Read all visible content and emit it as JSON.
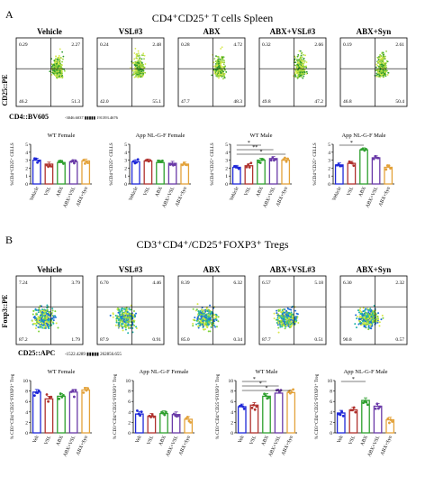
{
  "panels": [
    {
      "letter": "A",
      "title": "CD4⁺CD25⁺ T cells Spleen",
      "flow_y_label": "CD25::PE",
      "flow_x_label": "CD4::BV605",
      "flow_scale_text": "-3046.6037 ▮▮▮▮▮ 191393.4676",
      "flow_plots": [
        {
          "name": "Vehicle",
          "q": [
            "0.29",
            "2.27",
            "46.2",
            "51.3"
          ]
        },
        {
          "name": "VSL#3",
          "q": [
            "0.24",
            "2.48",
            "42.0",
            "55.1"
          ]
        },
        {
          "name": "ABX",
          "q": [
            "0.28",
            "4.72",
            "47.7",
            "48.3"
          ]
        },
        {
          "name": "ABX+VSL#3",
          "q": [
            "0.32",
            "2.66",
            "49.8",
            "47.2"
          ]
        },
        {
          "name": "ABX+Syn",
          "q": [
            "0.19",
            "2.61",
            "46.8",
            "50.4"
          ]
        }
      ]
    },
    {
      "letter": "B",
      "title": "CD3⁺CD4⁺/CD25⁺FOXP3⁺ Tregs",
      "flow_y_label": "Foxp3::PE",
      "flow_x_label": "CD25::APC",
      "flow_scale_text": "-1522.4289 ▮▮▮▮▮ 262856.655",
      "flow_plots": [
        {
          "name": "Vehicle",
          "q": [
            "7.24",
            "3.79",
            "87.2",
            "1.79"
          ]
        },
        {
          "name": "VSL#3",
          "q": [
            "6.70",
            "4.46",
            "87.9",
            "0.91"
          ]
        },
        {
          "name": "ABX",
          "q": [
            "8.39",
            "6.32",
            "85.0",
            "0.34"
          ]
        },
        {
          "name": "ABX+VSL#3",
          "q": [
            "6.57",
            "5.18",
            "87.7",
            "0.51"
          ]
        },
        {
          "name": "ABX+Syn",
          "q": [
            "6.30",
            "2.32",
            "90.8",
            "0.57"
          ]
        }
      ]
    }
  ],
  "chart_data": [
    {
      "type": "bar",
      "panel": "A",
      "title": "WT Female",
      "ylabel": "%CD4⁺CD25⁺ CELLS",
      "ylim": [
        0,
        5
      ],
      "yticks": [
        0,
        1,
        2,
        3,
        4,
        5
      ],
      "categories": [
        "Vehicle",
        "VSL",
        "ABX",
        "ABX+VSL",
        "ABX+Syn"
      ],
      "values": [
        3.0,
        2.5,
        2.7,
        2.8,
        2.9
      ],
      "colors": [
        "#1f28d8",
        "#b0322e",
        "#2fa02f",
        "#6a3aa8",
        "#e3a23a"
      ],
      "significance": []
    },
    {
      "type": "bar",
      "panel": "A",
      "title": "App NL-G-F Female",
      "ylabel": "%CD4⁺CD25⁺ CELLS",
      "ylim": [
        0,
        5
      ],
      "yticks": [
        0,
        1,
        2,
        3,
        4,
        5
      ],
      "categories": [
        "Vehicle",
        "VSL",
        "ABX",
        "ABX+VSL",
        "ABX+Syn"
      ],
      "values": [
        2.8,
        2.9,
        2.7,
        2.6,
        2.5
      ],
      "colors": [
        "#1f28d8",
        "#b0322e",
        "#2fa02f",
        "#6a3aa8",
        "#e3a23a"
      ],
      "significance": []
    },
    {
      "type": "bar",
      "panel": "A",
      "title": "WT Male",
      "ylabel": "%CD4⁺CD25⁺ CELLS",
      "ylim": [
        0,
        5
      ],
      "yticks": [
        0,
        1,
        2,
        3,
        4,
        5
      ],
      "categories": [
        "Vehicle",
        "VSL",
        "ABX",
        "ABX+VSL",
        "ABX+Syn"
      ],
      "values": [
        2.1,
        2.3,
        3.0,
        3.2,
        3.0
      ],
      "colors": [
        "#1f28d8",
        "#b0322e",
        "#2fa02f",
        "#6a3aa8",
        "#e3a23a"
      ],
      "significance": [
        {
          "from": 0,
          "to": 2,
          "label": "*"
        },
        {
          "from": 0,
          "to": 3,
          "label": "**"
        },
        {
          "from": 0,
          "to": 4,
          "label": "*"
        }
      ]
    },
    {
      "type": "bar",
      "panel": "A",
      "title": "App NL-G-F Male",
      "ylabel": "%CD4⁺CD25⁺ CELLS",
      "ylim": [
        0,
        5
      ],
      "yticks": [
        0,
        1,
        2,
        3,
        4,
        5
      ],
      "categories": [
        "Vehicle",
        "VSL",
        "ABX",
        "ABX+VSL",
        "ABX+Syn"
      ],
      "values": [
        2.4,
        2.6,
        4.3,
        3.3,
        2.1
      ],
      "colors": [
        "#1f28d8",
        "#b0322e",
        "#2fa02f",
        "#6a3aa8",
        "#e3a23a"
      ],
      "significance": [
        {
          "from": 0,
          "to": 2,
          "label": "*"
        }
      ]
    },
    {
      "type": "bar",
      "panel": "B",
      "title": "WT Female",
      "ylabel": "% CD3⁺CD4⁺CD25⁺FOXP3⁺ Treg",
      "ylim": [
        0,
        10
      ],
      "yticks": [
        0,
        2,
        4,
        6,
        8,
        10
      ],
      "categories": [
        "Veh",
        "VSL",
        "ABX",
        "ABX+VSL",
        "ABX+Syn"
      ],
      "values": [
        7.8,
        6.5,
        7.0,
        7.8,
        8.2
      ],
      "colors": [
        "#1f28d8",
        "#b0322e",
        "#2fa02f",
        "#6a3aa8",
        "#e3a23a"
      ],
      "significance": []
    },
    {
      "type": "bar",
      "panel": "B",
      "title": "App NL-G-F Female",
      "ylabel": "% CD3⁺CD4⁺CD25⁺FOXP3⁺ Treg",
      "ylim": [
        0,
        10
      ],
      "yticks": [
        0,
        2,
        4,
        6,
        8,
        10
      ],
      "categories": [
        "Veh",
        "VSL",
        "ABX",
        "ABX+VSL",
        "ABX+Syn"
      ],
      "values": [
        3.6,
        3.2,
        3.7,
        3.5,
        2.6
      ],
      "colors": [
        "#1f28d8",
        "#b0322e",
        "#2fa02f",
        "#6a3aa8",
        "#e3a23a"
      ],
      "significance": []
    },
    {
      "type": "bar",
      "panel": "B",
      "title": "WT Male",
      "ylabel": "% CD3⁺CD4⁺CD25⁺FOXP3⁺ Treg",
      "ylim": [
        0,
        10
      ],
      "yticks": [
        0,
        2,
        4,
        6,
        8,
        10
      ],
      "categories": [
        "Veh",
        "VSL",
        "ABX",
        "ABX+VSL",
        "ABX+Syn"
      ],
      "values": [
        5.0,
        5.3,
        7.0,
        7.6,
        7.7
      ],
      "colors": [
        "#1f28d8",
        "#b0322e",
        "#2fa02f",
        "#6a3aa8",
        "#e3a23a"
      ],
      "significance": [
        {
          "from": 0,
          "to": 2,
          "label": "*"
        },
        {
          "from": 0,
          "to": 3,
          "label": "*"
        },
        {
          "from": 0,
          "to": 4,
          "label": "*"
        }
      ]
    },
    {
      "type": "bar",
      "panel": "B",
      "title": "App NL-G-F Male",
      "ylabel": "% CD3⁺CD4⁺CD25⁺FOXP3⁺ Treg",
      "ylim": [
        0,
        10
      ],
      "yticks": [
        0,
        2,
        4,
        6,
        8,
        10
      ],
      "categories": [
        "Veh",
        "VSL",
        "ABX",
        "ABX+VSL",
        "ABX+Syn"
      ],
      "values": [
        3.8,
        4.4,
        6.2,
        5.1,
        2.5
      ],
      "colors": [
        "#1f28d8",
        "#b0322e",
        "#2fa02f",
        "#6a3aa8",
        "#e3a23a"
      ],
      "significance": [
        {
          "from": 0,
          "to": 2,
          "label": "*"
        }
      ]
    }
  ]
}
